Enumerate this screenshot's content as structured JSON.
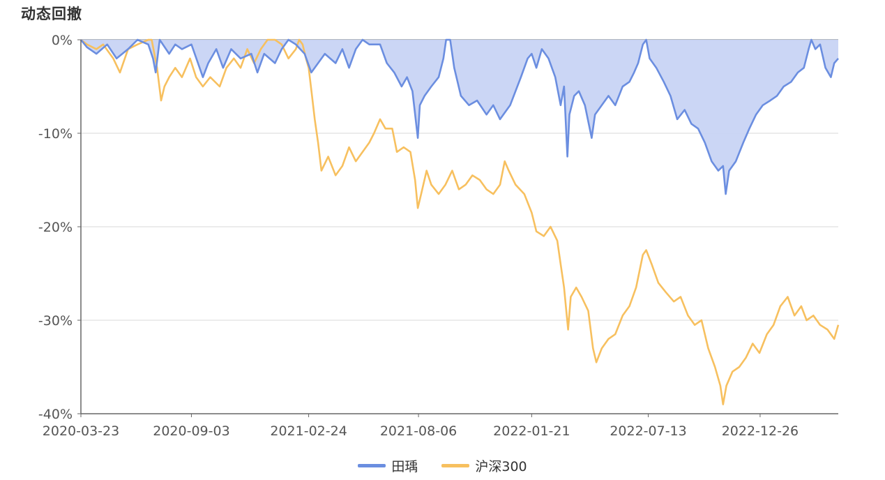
{
  "title": "动态回撤",
  "colors": {
    "tianyu": "#6b8ee0",
    "tianyu_fill": "#c8d4f4",
    "hs300": "#f7c05f",
    "grid": "#d9d9d9",
    "axis": "#666666"
  },
  "chart_data": {
    "type": "area",
    "title": "动态回撤",
    "xlabel": "",
    "ylabel": "",
    "ylim": [
      -40,
      0
    ],
    "y_ticks": [
      0,
      -10,
      -20,
      -30,
      -40
    ],
    "y_tick_labels": [
      "0%",
      "-10%",
      "-20%",
      "-30%",
      "-40%"
    ],
    "x_tick_labels": [
      "2020-03-23",
      "2020-09-03",
      "2021-02-24",
      "2021-08-06",
      "2022-01-21",
      "2022-07-13",
      "2022-12-26"
    ],
    "x_range": [
      "2020-03-23",
      "2023-04-21"
    ],
    "legend_position": "bottom-center",
    "grid": true,
    "series": [
      {
        "name": "田瑀",
        "fill": true,
        "points": [
          [
            "2020-03-23",
            0
          ],
          [
            "2020-04-01",
            -0.8
          ],
          [
            "2020-04-15",
            -1.5
          ],
          [
            "2020-05-01",
            -0.5
          ],
          [
            "2020-05-15",
            -2
          ],
          [
            "2020-06-01",
            -1
          ],
          [
            "2020-06-15",
            0
          ],
          [
            "2020-07-01",
            -0.5
          ],
          [
            "2020-07-08",
            -2
          ],
          [
            "2020-07-12",
            -3.5
          ],
          [
            "2020-07-18",
            0
          ],
          [
            "2020-08-01",
            -1.5
          ],
          [
            "2020-08-10",
            -0.5
          ],
          [
            "2020-08-20",
            -1
          ],
          [
            "2020-09-03",
            -0.5
          ],
          [
            "2020-09-20",
            -4
          ],
          [
            "2020-09-28",
            -2.5
          ],
          [
            "2020-10-10",
            -1
          ],
          [
            "2020-10-20",
            -3
          ],
          [
            "2020-11-01",
            -1
          ],
          [
            "2020-11-15",
            -2
          ],
          [
            "2020-12-01",
            -1.5
          ],
          [
            "2020-12-10",
            -3.5
          ],
          [
            "2020-12-20",
            -1.5
          ],
          [
            "2021-01-05",
            -2.5
          ],
          [
            "2021-01-15",
            -1
          ],
          [
            "2021-01-25",
            0
          ],
          [
            "2021-02-05",
            -0.5
          ],
          [
            "2021-02-18",
            -1.5
          ],
          [
            "2021-02-28",
            -3.5
          ],
          [
            "2021-03-10",
            -2.5
          ],
          [
            "2021-03-20",
            -1.5
          ],
          [
            "2021-04-05",
            -2.5
          ],
          [
            "2021-04-15",
            -1
          ],
          [
            "2021-04-25",
            -3
          ],
          [
            "2021-05-05",
            -1
          ],
          [
            "2021-05-15",
            0
          ],
          [
            "2021-05-25",
            -0.5
          ],
          [
            "2021-06-10",
            -0.5
          ],
          [
            "2021-06-20",
            -2.5
          ],
          [
            "2021-07-01",
            -3.5
          ],
          [
            "2021-07-12",
            -5
          ],
          [
            "2021-07-20",
            -4
          ],
          [
            "2021-07-28",
            -5.5
          ],
          [
            "2021-08-05",
            -10.5
          ],
          [
            "2021-08-08",
            -7
          ],
          [
            "2021-08-15",
            -6
          ],
          [
            "2021-08-25",
            -5
          ],
          [
            "2021-09-05",
            -4
          ],
          [
            "2021-09-12",
            -2
          ],
          [
            "2021-09-16",
            0
          ],
          [
            "2021-09-22",
            0
          ],
          [
            "2021-09-28",
            -3
          ],
          [
            "2021-10-08",
            -6
          ],
          [
            "2021-10-20",
            -7
          ],
          [
            "2021-11-01",
            -6.5
          ],
          [
            "2021-11-15",
            -8
          ],
          [
            "2021-11-25",
            -7
          ],
          [
            "2021-12-05",
            -8.5
          ],
          [
            "2021-12-20",
            -7
          ],
          [
            "2022-01-05",
            -4
          ],
          [
            "2022-01-15",
            -2
          ],
          [
            "2022-01-21",
            -1.5
          ],
          [
            "2022-01-28",
            -3
          ],
          [
            "2022-02-05",
            -1
          ],
          [
            "2022-02-15",
            -2
          ],
          [
            "2022-02-25",
            -4
          ],
          [
            "2022-03-05",
            -7
          ],
          [
            "2022-03-10",
            -5
          ],
          [
            "2022-03-15",
            -12.5
          ],
          [
            "2022-03-18",
            -8
          ],
          [
            "2022-03-25",
            -6
          ],
          [
            "2022-04-01",
            -5.5
          ],
          [
            "2022-04-10",
            -7
          ],
          [
            "2022-04-20",
            -10.5
          ],
          [
            "2022-04-25",
            -8
          ],
          [
            "2022-05-05",
            -7
          ],
          [
            "2022-05-15",
            -6
          ],
          [
            "2022-05-25",
            -7
          ],
          [
            "2022-06-05",
            -5
          ],
          [
            "2022-06-15",
            -4.5
          ],
          [
            "2022-06-22",
            -3.5
          ],
          [
            "2022-06-28",
            -2.5
          ],
          [
            "2022-07-05",
            -0.5
          ],
          [
            "2022-07-10",
            0
          ],
          [
            "2022-07-15",
            -2
          ],
          [
            "2022-07-25",
            -3
          ],
          [
            "2022-08-05",
            -4.5
          ],
          [
            "2022-08-15",
            -6
          ],
          [
            "2022-08-25",
            -8.5
          ],
          [
            "2022-09-05",
            -7.5
          ],
          [
            "2022-09-15",
            -9
          ],
          [
            "2022-09-25",
            -9.5
          ],
          [
            "2022-10-05",
            -11
          ],
          [
            "2022-10-15",
            -13
          ],
          [
            "2022-10-25",
            -14
          ],
          [
            "2022-11-01",
            -13.5
          ],
          [
            "2022-11-05",
            -16.5
          ],
          [
            "2022-11-10",
            -14
          ],
          [
            "2022-11-20",
            -13
          ],
          [
            "2022-12-01",
            -11
          ],
          [
            "2022-12-10",
            -9.5
          ],
          [
            "2022-12-20",
            -8
          ],
          [
            "2022-12-30",
            -7
          ],
          [
            "2023-01-10",
            -6.5
          ],
          [
            "2023-01-20",
            -6
          ],
          [
            "2023-01-30",
            -5
          ],
          [
            "2023-02-10",
            -4.5
          ],
          [
            "2023-02-20",
            -3.5
          ],
          [
            "2023-03-01",
            -3
          ],
          [
            "2023-03-08",
            -1
          ],
          [
            "2023-03-12",
            0
          ],
          [
            "2023-03-18",
            -1
          ],
          [
            "2023-03-25",
            -0.5
          ],
          [
            "2023-04-02",
            -3
          ],
          [
            "2023-04-10",
            -4
          ],
          [
            "2023-04-15",
            -2.5
          ],
          [
            "2023-04-21",
            -2
          ]
        ]
      },
      {
        "name": "沪深300",
        "fill": false,
        "points": [
          [
            "2020-03-23",
            0
          ],
          [
            "2020-04-01",
            -0.5
          ],
          [
            "2020-04-15",
            -1
          ],
          [
            "2020-04-25",
            -0.5
          ],
          [
            "2020-05-10",
            -2
          ],
          [
            "2020-05-20",
            -3.5
          ],
          [
            "2020-06-01",
            -1
          ],
          [
            "2020-06-15",
            -0.5
          ],
          [
            "2020-07-01",
            0
          ],
          [
            "2020-07-06",
            0
          ],
          [
            "2020-07-14",
            -3
          ],
          [
            "2020-07-20",
            -6.5
          ],
          [
            "2020-07-25",
            -5
          ],
          [
            "2020-08-01",
            -4
          ],
          [
            "2020-08-10",
            -3
          ],
          [
            "2020-08-20",
            -4
          ],
          [
            "2020-09-01",
            -2
          ],
          [
            "2020-09-10",
            -4
          ],
          [
            "2020-09-20",
            -5
          ],
          [
            "2020-10-01",
            -4
          ],
          [
            "2020-10-15",
            -5
          ],
          [
            "2020-10-25",
            -3
          ],
          [
            "2020-11-05",
            -2
          ],
          [
            "2020-11-15",
            -3
          ],
          [
            "2020-11-25",
            -1
          ],
          [
            "2020-12-05",
            -2.5
          ],
          [
            "2020-12-15",
            -1
          ],
          [
            "2020-12-25",
            0
          ],
          [
            "2021-01-05",
            0
          ],
          [
            "2021-01-15",
            -0.5
          ],
          [
            "2021-01-25",
            -2
          ],
          [
            "2021-02-05",
            -1
          ],
          [
            "2021-02-10",
            0
          ],
          [
            "2021-02-15",
            -0.5
          ],
          [
            "2021-02-20",
            -2
          ],
          [
            "2021-02-24",
            -3
          ],
          [
            "2021-03-01",
            -6
          ],
          [
            "2021-03-05",
            -8.5
          ],
          [
            "2021-03-10",
            -11
          ],
          [
            "2021-03-15",
            -14
          ],
          [
            "2021-03-25",
            -12.5
          ],
          [
            "2021-04-05",
            -14.5
          ],
          [
            "2021-04-15",
            -13.5
          ],
          [
            "2021-04-25",
            -11.5
          ],
          [
            "2021-05-05",
            -13
          ],
          [
            "2021-05-15",
            -12
          ],
          [
            "2021-05-25",
            -11
          ],
          [
            "2021-06-01",
            -10
          ],
          [
            "2021-06-10",
            -8.5
          ],
          [
            "2021-06-18",
            -9.5
          ],
          [
            "2021-06-28",
            -9.5
          ],
          [
            "2021-07-05",
            -12
          ],
          [
            "2021-07-15",
            -11.5
          ],
          [
            "2021-07-25",
            -12
          ],
          [
            "2021-08-01",
            -15
          ],
          [
            "2021-08-05",
            -18
          ],
          [
            "2021-08-10",
            -16.5
          ],
          [
            "2021-08-18",
            -14
          ],
          [
            "2021-08-25",
            -15.5
          ],
          [
            "2021-09-05",
            -16.5
          ],
          [
            "2021-09-15",
            -15.5
          ],
          [
            "2021-09-25",
            -14
          ],
          [
            "2021-10-05",
            -16
          ],
          [
            "2021-10-15",
            -15.5
          ],
          [
            "2021-10-25",
            -14.5
          ],
          [
            "2021-11-05",
            -15
          ],
          [
            "2021-11-15",
            -16
          ],
          [
            "2021-11-25",
            -16.5
          ],
          [
            "2021-12-05",
            -15.5
          ],
          [
            "2021-12-12",
            -13
          ],
          [
            "2021-12-18",
            -14
          ],
          [
            "2021-12-28",
            -15.5
          ],
          [
            "2022-01-10",
            -16.5
          ],
          [
            "2022-01-21",
            -18.5
          ],
          [
            "2022-01-28",
            -20.5
          ],
          [
            "2022-02-08",
            -21
          ],
          [
            "2022-02-18",
            -20
          ],
          [
            "2022-02-28",
            -21.5
          ],
          [
            "2022-03-05",
            -24
          ],
          [
            "2022-03-10",
            -26.5
          ],
          [
            "2022-03-16",
            -31
          ],
          [
            "2022-03-20",
            -27.5
          ],
          [
            "2022-03-28",
            -26.5
          ],
          [
            "2022-04-05",
            -27.5
          ],
          [
            "2022-04-15",
            -29
          ],
          [
            "2022-04-22",
            -33
          ],
          [
            "2022-04-27",
            -34.5
          ],
          [
            "2022-05-05",
            -33
          ],
          [
            "2022-05-15",
            -32
          ],
          [
            "2022-05-25",
            -31.5
          ],
          [
            "2022-06-05",
            -29.5
          ],
          [
            "2022-06-15",
            -28.5
          ],
          [
            "2022-06-25",
            -26.5
          ],
          [
            "2022-07-05",
            -23
          ],
          [
            "2022-07-10",
            -22.5
          ],
          [
            "2022-07-18",
            -24
          ],
          [
            "2022-07-28",
            -26
          ],
          [
            "2022-08-08",
            -27
          ],
          [
            "2022-08-20",
            -28
          ],
          [
            "2022-08-30",
            -27.5
          ],
          [
            "2022-09-10",
            -29.5
          ],
          [
            "2022-09-20",
            -30.5
          ],
          [
            "2022-09-30",
            -30
          ],
          [
            "2022-10-10",
            -33
          ],
          [
            "2022-10-20",
            -35
          ],
          [
            "2022-10-28",
            -37
          ],
          [
            "2022-11-01",
            -39
          ],
          [
            "2022-11-06",
            -37
          ],
          [
            "2022-11-15",
            -35.5
          ],
          [
            "2022-11-25",
            -35
          ],
          [
            "2022-12-05",
            -34
          ],
          [
            "2022-12-15",
            -32.5
          ],
          [
            "2022-12-25",
            -33.5
          ],
          [
            "2023-01-05",
            -31.5
          ],
          [
            "2023-01-15",
            -30.5
          ],
          [
            "2023-01-25",
            -28.5
          ],
          [
            "2023-02-05",
            -27.5
          ],
          [
            "2023-02-15",
            -29.5
          ],
          [
            "2023-02-25",
            -28.5
          ],
          [
            "2023-03-05",
            -30
          ],
          [
            "2023-03-15",
            -29.5
          ],
          [
            "2023-03-25",
            -30.5
          ],
          [
            "2023-04-05",
            -31
          ],
          [
            "2023-04-15",
            -32
          ],
          [
            "2023-04-21",
            -30.5
          ]
        ]
      }
    ]
  }
}
